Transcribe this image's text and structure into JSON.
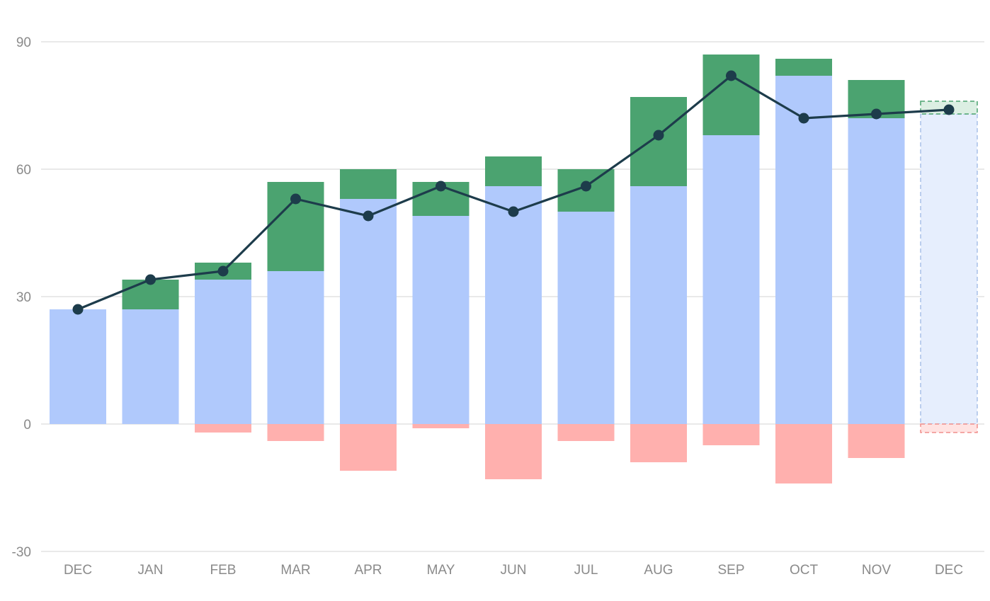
{
  "colors": {
    "base": "#b0c9fc",
    "gain": "#4ba370",
    "loss": "#ffb0ae",
    "line": "#1d3c4b",
    "forecast_fill": "#e6eefd",
    "forecast_stroke": "#a9c1e8",
    "forecast_gain_fill": "#dcefe3",
    "forecast_gain_stroke": "#4ba370",
    "forecast_loss_fill": "#ffe3e2",
    "forecast_loss_stroke": "#f08f8c",
    "grid": "#dcdcdc",
    "tick_text": "#8a8a8a"
  },
  "chart_data": {
    "type": "bar",
    "title": "",
    "xlabel": "",
    "ylabel": "",
    "ylim": [
      -30,
      90
    ],
    "yticks": [
      90,
      60,
      30,
      0,
      -30
    ],
    "grid": true,
    "categories": [
      "DEC",
      "JAN",
      "FEB",
      "MAR",
      "APR",
      "MAY",
      "JUN",
      "JUL",
      "AUG",
      "SEP",
      "OCT",
      "NOV",
      "DEC"
    ],
    "series": [
      {
        "role": "base",
        "values": [
          27,
          27,
          34,
          36,
          53,
          49,
          56,
          50,
          56,
          68,
          82,
          72,
          73
        ]
      },
      {
        "role": "gain",
        "values": [
          0,
          7,
          4,
          21,
          7,
          8,
          7,
          10,
          21,
          19,
          4,
          9,
          3
        ]
      },
      {
        "role": "loss",
        "values": [
          0,
          0,
          -2,
          -4,
          -11,
          -1,
          -13,
          -4,
          -9,
          -5,
          -14,
          -8,
          -2
        ]
      },
      {
        "role": "net",
        "type": "line",
        "values": [
          27,
          34,
          36,
          53,
          49,
          56,
          50,
          56,
          68,
          82,
          72,
          73,
          74
        ]
      }
    ],
    "forecast_index": 12
  }
}
